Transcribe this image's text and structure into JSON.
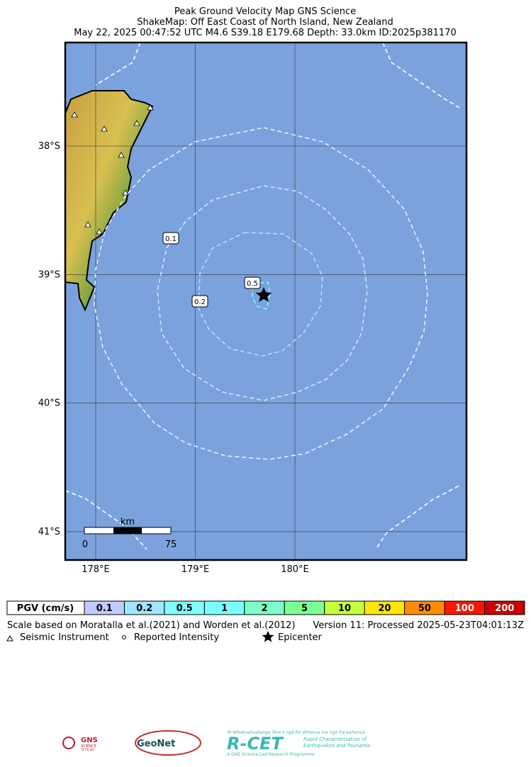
{
  "header": {
    "title": "Peak Ground Velocity Map GNS Science",
    "subtitle": "ShakeMap: Off East Coast of North Island, New Zealand",
    "event": "May 22, 2025 00:47:52 UTC M4.6 S39.18 E179.68 Depth: 33.0km ID:2025p381170"
  },
  "map": {
    "lon_ticks": [
      {
        "value": 178,
        "label": "178°E"
      },
      {
        "value": 179,
        "label": "179°E"
      },
      {
        "value": 180,
        "label": "180°E"
      }
    ],
    "lat_ticks": [
      {
        "value": 38,
        "label": "38°S"
      },
      {
        "value": 39,
        "label": "39°S"
      },
      {
        "value": 40,
        "label": "40°S"
      },
      {
        "value": 41,
        "label": "41°S"
      }
    ],
    "contour_labels": [
      "0.1",
      "0.5",
      "0.2"
    ],
    "scale_bar": {
      "unit": "km",
      "start": "0",
      "end": "75"
    }
  },
  "colorbar": {
    "title": "PGV (cm/s)",
    "labels": [
      "0.1",
      "0.2",
      "0.5",
      "1",
      "2",
      "5",
      "10",
      "20",
      "50",
      "100",
      "200"
    ],
    "colors": [
      "#bfccff",
      "#a0e6ff",
      "#80ffff",
      "#7affff",
      "#7affc8",
      "#7aff93",
      "#c8ff3c",
      "#ffe600",
      "#ff8c00",
      "#ff1400",
      "#c80000"
    ]
  },
  "notes": {
    "scale": "Scale based on Moratalla et al.(2021) and Worden et al.(2012)",
    "version": "Version 11: Processed 2025-05-23T04:01:13Z"
  },
  "legend": {
    "instrument": "Seismic Instrument",
    "intensity": "Reported Intensity",
    "epicenter": "Epicenter"
  },
  "logos": {
    "gns": "GNS",
    "gns_sub": "SCIENCE",
    "gns_maori": "TE PŪ AO",
    "geonet": "GeoNet",
    "rcet": "R-CET",
    "rcet_maori": "Te Whakaahuatanga Tere o ngā Rū Whenua me ngā Parawhenua",
    "rcet_line1": "Rapid Characterisation of",
    "rcet_line2": "Earthquakes and Tsunamis",
    "rcet_footer": "A GNS Science Led Research Programme"
  }
}
